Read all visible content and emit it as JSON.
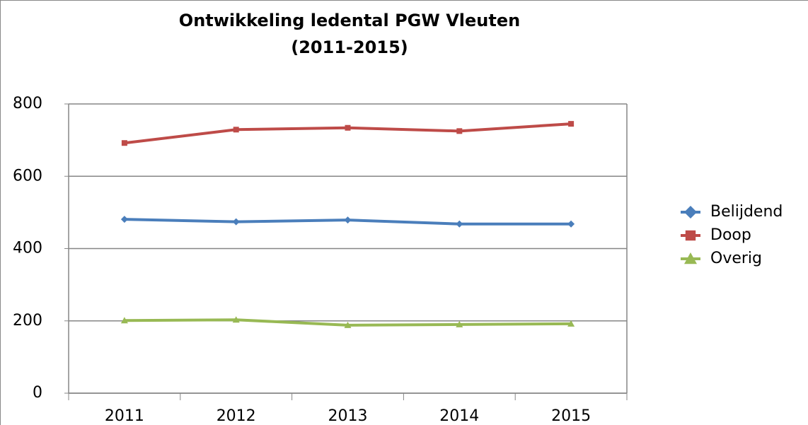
{
  "chart_data": {
    "type": "line",
    "title": [
      "Ontwikkeling ledental PGW Vleuten",
      "(2011-2015)"
    ],
    "categories": [
      "2011",
      "2012",
      "2013",
      "2014",
      "2015"
    ],
    "series": [
      {
        "name": "Belijdend",
        "color": "#4a7ebb",
        "marker": "diamond",
        "values": [
          481,
          474,
          479,
          468,
          468
        ]
      },
      {
        "name": "Doop",
        "color": "#be4b48",
        "marker": "square",
        "values": [
          692,
          729,
          734,
          725,
          745
        ]
      },
      {
        "name": "Overig",
        "color": "#98b954",
        "marker": "triangle",
        "values": [
          201,
          203,
          188,
          190,
          192
        ]
      }
    ],
    "ylim": [
      0,
      800
    ],
    "yticks": [
      0,
      200,
      400,
      600,
      800
    ],
    "grid": true,
    "legend": "right"
  }
}
